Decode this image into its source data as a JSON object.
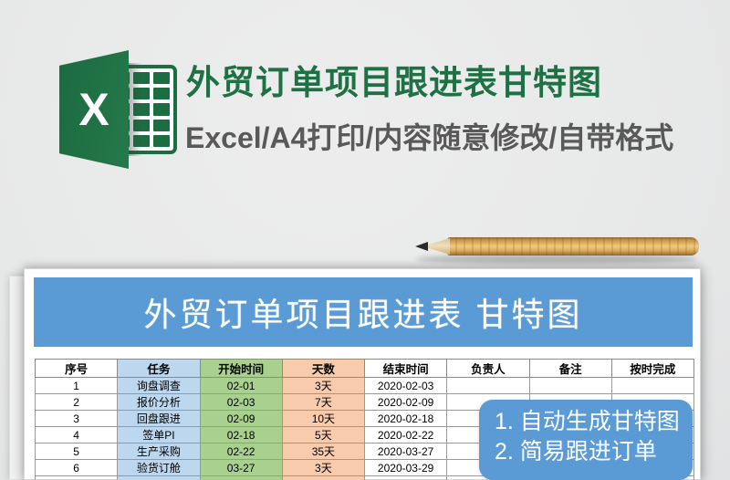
{
  "header": {
    "title": "外贸订单项目跟进表甘特图",
    "subtitle": "Excel/A4打印/内容随意修改/自带格式",
    "title_color": "#1e7145",
    "subtitle_color": "#595959"
  },
  "logo": {
    "letter": "X",
    "brand_color": "#217346"
  },
  "preview": {
    "banner": {
      "title": "外贸订单项目跟进表 甘特图",
      "color": "#5b9bd5"
    },
    "table": {
      "columns": [
        "序号",
        "任务",
        "开始时间",
        "天数",
        "结束时间",
        "负责人",
        "备注",
        "按时完成"
      ],
      "column_colors": {
        "任务": "#bdd7ee",
        "开始时间": "#a9d08e",
        "天数": "#f8cbad"
      },
      "rows": [
        [
          "1",
          "询盘调查",
          "02-01",
          "3天",
          "2020-02-03",
          "",
          "",
          ""
        ],
        [
          "2",
          "报价分析",
          "02-03",
          "7天",
          "2020-02-09",
          "",
          "",
          ""
        ],
        [
          "3",
          "回盘跟进",
          "02-09",
          "10天",
          "2020-02-18",
          "",
          "",
          ""
        ],
        [
          "4",
          "签单PI",
          "02-18",
          "5天",
          "2020-02-22",
          "",
          "",
          ""
        ],
        [
          "5",
          "生产采购",
          "02-22",
          "35天",
          "2020-03-27",
          "",
          "",
          ""
        ],
        [
          "6",
          "验货订舱",
          "03-27",
          "3天",
          "2020-03-29",
          "",
          "",
          ""
        ]
      ],
      "partial_row": [
        "",
        "",
        "",
        "",
        "",
        "",
        "",
        ""
      ]
    },
    "callout": {
      "lines": [
        "1. 自动生成甘特图",
        "2. 简易跟进订单"
      ],
      "color": "#5b9bd5"
    }
  }
}
